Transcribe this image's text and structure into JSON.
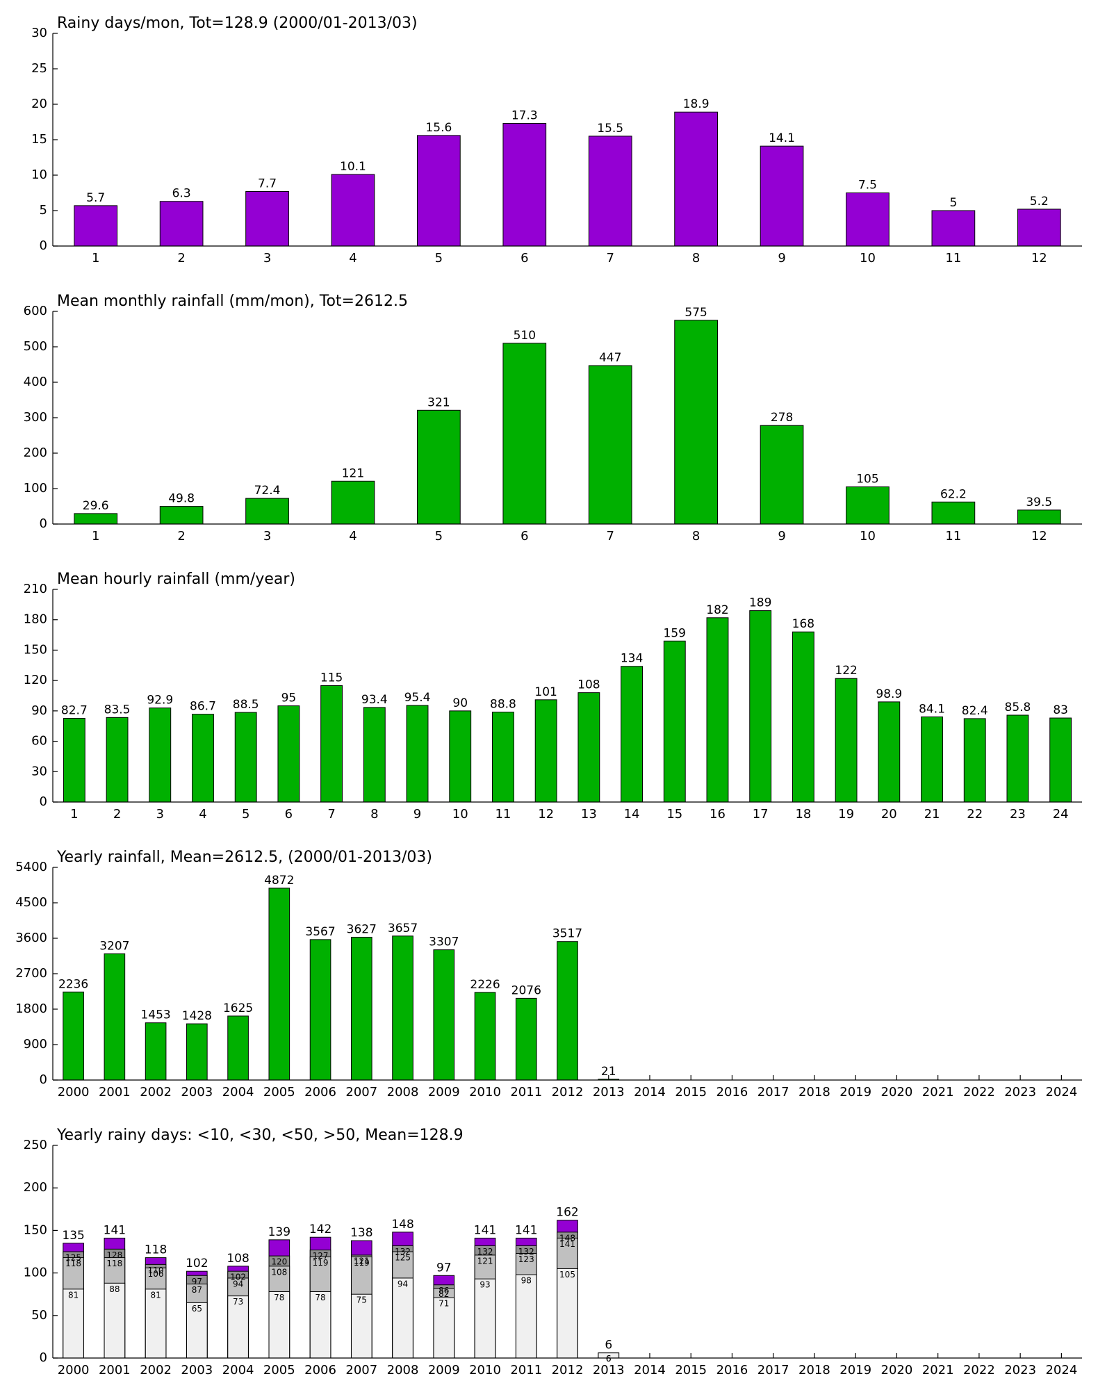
{
  "chart_data": [
    {
      "type": "bar",
      "title": "Rainy days/mon, Tot=128.9 (2000/01-2013/03)",
      "categories": [
        1,
        2,
        3,
        4,
        5,
        6,
        7,
        8,
        9,
        10,
        11,
        12
      ],
      "values": [
        5.7,
        6.3,
        7.7,
        10.1,
        15.6,
        17.3,
        15.5,
        18.9,
        14.1,
        7.5,
        5,
        5.2
      ],
      "color": "#9400d3",
      "ylim": [
        0,
        30
      ],
      "yticks": [
        0,
        5,
        10,
        15,
        20,
        25,
        30
      ],
      "grid": false
    },
    {
      "type": "bar",
      "title": "Mean monthly rainfall (mm/mon), Tot=2612.5",
      "categories": [
        1,
        2,
        3,
        4,
        5,
        6,
        7,
        8,
        9,
        10,
        11,
        12
      ],
      "values": [
        29.6,
        49.8,
        72.4,
        121,
        321,
        510,
        447,
        575,
        278,
        105,
        62.2,
        39.5
      ],
      "color": "#00b000",
      "ylim": [
        0,
        600
      ],
      "yticks": [
        0,
        100,
        200,
        300,
        400,
        500,
        600
      ],
      "grid": false
    },
    {
      "type": "bar",
      "title": "Mean hourly rainfall (mm/year)",
      "categories": [
        1,
        2,
        3,
        4,
        5,
        6,
        7,
        8,
        9,
        10,
        11,
        12,
        13,
        14,
        15,
        16,
        17,
        18,
        19,
        20,
        21,
        22,
        23,
        24
      ],
      "values": [
        82.7,
        83.5,
        92.9,
        86.7,
        88.5,
        95,
        115,
        93.4,
        95.4,
        90,
        88.8,
        101,
        108,
        134,
        159,
        182,
        189,
        168,
        122,
        98.9,
        84.1,
        82.4,
        85.8,
        83
      ],
      "color": "#00b000",
      "ylim": [
        0,
        210
      ],
      "yticks": [
        0,
        30,
        60,
        90,
        120,
        150,
        180,
        210
      ],
      "grid": false
    },
    {
      "type": "bar",
      "title": "Yearly rainfall, Mean=2612.5, (2000/01-2013/03)",
      "categories": [
        "2000",
        "2001",
        "2002",
        "2003",
        "2004",
        "2005",
        "2006",
        "2007",
        "2008",
        "2009",
        "2010",
        "2011",
        "2012",
        "2013",
        "2014",
        "2015",
        "2016",
        "2017",
        "2018",
        "2019",
        "2020",
        "2021",
        "2022",
        "2023",
        "2024"
      ],
      "values": [
        2236,
        3207,
        1453,
        1428,
        1625,
        4872,
        3567,
        3627,
        3657,
        3307,
        2226,
        2076,
        3517,
        21,
        null,
        null,
        null,
        null,
        null,
        null,
        null,
        null,
        null,
        null,
        null
      ],
      "color": "#00b000",
      "ylim": [
        0,
        5400
      ],
      "yticks": [
        0,
        900,
        1800,
        2700,
        3600,
        4500,
        5400
      ],
      "grid": false
    },
    {
      "type": "overlay",
      "title": "Yearly rainy days: <10, <30, <50, >50, Mean=128.9",
      "categories": [
        "2000",
        "2001",
        "2002",
        "2003",
        "2004",
        "2005",
        "2006",
        "2007",
        "2008",
        "2009",
        "2010",
        "2011",
        "2012",
        "2013",
        "2014",
        "2015",
        "2016",
        "2017",
        "2018",
        "2019",
        "2020",
        "2021",
        "2022",
        "2023",
        "2024"
      ],
      "series": [
        {
          "color": "#f0f0f0",
          "values": [
            81,
            88,
            81,
            65,
            73,
            78,
            78,
            75,
            94,
            71,
            93,
            98,
            105,
            6,
            null,
            null,
            null,
            null,
            null,
            null,
            null,
            null,
            null,
            null,
            null
          ]
        },
        {
          "color": "#c0c0c0",
          "values": [
            118,
            118,
            106,
            87,
            94,
            108,
            119,
            119,
            125,
            82,
            121,
            123,
            141,
            6,
            null,
            null,
            null,
            null,
            null,
            null,
            null,
            null,
            null,
            null,
            null
          ]
        },
        {
          "color": "#909090",
          "values": [
            125,
            128,
            110,
            97,
            102,
            120,
            127,
            121,
            132,
            86,
            132,
            132,
            148,
            6,
            null,
            null,
            null,
            null,
            null,
            null,
            null,
            null,
            null,
            null,
            null
          ]
        },
        {
          "color": "#9400d3",
          "values": [
            135,
            141,
            118,
            102,
            108,
            139,
            142,
            138,
            148,
            97,
            141,
            141,
            162,
            6,
            null,
            null,
            null,
            null,
            null,
            null,
            null,
            null,
            null,
            null,
            null
          ]
        }
      ],
      "ylim": [
        0,
        250
      ],
      "yticks": [
        0,
        50,
        100,
        150,
        200,
        250
      ],
      "grid": false
    }
  ]
}
